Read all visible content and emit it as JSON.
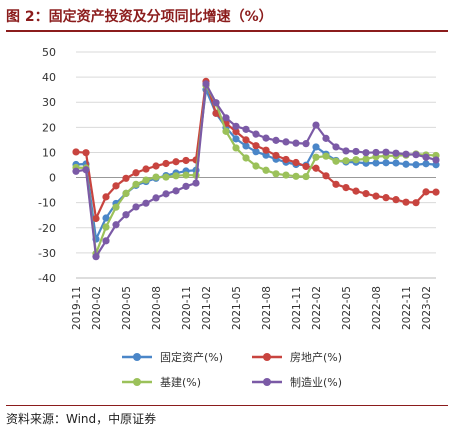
{
  "title": "图 2：固定资产投资及分项同比增速（%）",
  "source": "资料来源：Wind，中原证券",
  "chart_data": {
    "type": "line",
    "ylim": [
      -40,
      50
    ],
    "yticks": [
      -40,
      -30,
      -20,
      -10,
      0,
      10,
      20,
      30,
      40,
      50
    ],
    "grid": true,
    "legend_position": "bottom",
    "x": [
      "2019-11",
      "2019-12",
      "2020-02",
      "2020-03",
      "2020-04",
      "2020-05",
      "2020-06",
      "2020-07",
      "2020-08",
      "2020-09",
      "2020-10",
      "2020-11",
      "2020-12",
      "2021-02",
      "2021-03",
      "2021-04",
      "2021-05",
      "2021-06",
      "2021-07",
      "2021-08",
      "2021-09",
      "2021-10",
      "2021-11",
      "2021-12",
      "2022-02",
      "2022-03",
      "2022-04",
      "2022-05",
      "2022-06",
      "2022-07",
      "2022-08",
      "2022-09",
      "2022-10",
      "2022-11",
      "2022-12",
      "2023-02",
      "2023-03"
    ],
    "xtick_labels": [
      "2019-11",
      "2020-02",
      "2020-05",
      "2020-08",
      "2020-11",
      "2021-02",
      "2021-05",
      "2021-08",
      "2021-11",
      "2022-02",
      "2022-05",
      "2022-08",
      "2022-11",
      "2023-02"
    ],
    "series": [
      {
        "name": "固定资产(%)",
        "color": "#4a86c8",
        "values": [
          5.2,
          5.4,
          -24.5,
          -16.1,
          -10.3,
          -6.3,
          -3.1,
          -1.6,
          -0.3,
          0.8,
          1.8,
          2.6,
          2.9,
          35.0,
          25.6,
          19.9,
          15.4,
          12.6,
          10.3,
          8.9,
          7.3,
          6.1,
          5.2,
          4.9,
          12.2,
          9.3,
          6.8,
          6.2,
          6.1,
          5.7,
          5.8,
          5.9,
          5.8,
          5.3,
          5.1,
          5.5,
          5.1
        ]
      },
      {
        "name": "房地产(%)",
        "color": "#c8443f",
        "values": [
          10.2,
          9.9,
          -16.3,
          -7.7,
          -3.3,
          -0.3,
          1.9,
          3.4,
          4.6,
          5.6,
          6.3,
          6.8,
          7.0,
          38.3,
          25.6,
          21.6,
          18.3,
          15.0,
          12.7,
          10.9,
          8.8,
          7.2,
          6.0,
          4.4,
          3.7,
          0.7,
          -2.7,
          -4.0,
          -5.4,
          -6.4,
          -7.4,
          -8.0,
          -8.8,
          -9.8,
          -10.0,
          -5.7,
          -5.8
        ]
      },
      {
        "name": "基建(%)",
        "color": "#9bc15a",
        "values": [
          4.0,
          3.8,
          -30.3,
          -19.7,
          -11.8,
          -6.3,
          -2.7,
          -1.0,
          0.2,
          0.2,
          0.7,
          1.0,
          0.9,
          36.6,
          29.7,
          18.4,
          11.8,
          7.8,
          4.6,
          2.9,
          1.5,
          1.0,
          0.5,
          0.4,
          8.1,
          8.5,
          6.5,
          6.7,
          7.1,
          7.4,
          8.3,
          8.6,
          8.7,
          8.9,
          9.4,
          9.0,
          8.8
        ]
      },
      {
        "name": "制造业(%)",
        "color": "#7b5aa6",
        "values": [
          2.5,
          3.1,
          -31.5,
          -25.2,
          -18.8,
          -14.8,
          -11.7,
          -10.2,
          -8.1,
          -6.5,
          -5.3,
          -3.5,
          -2.2,
          37.3,
          29.8,
          23.8,
          20.4,
          19.2,
          17.3,
          15.7,
          14.8,
          14.2,
          13.7,
          13.5,
          20.9,
          15.6,
          12.2,
          10.6,
          10.4,
          9.9,
          10.0,
          10.1,
          9.7,
          9.3,
          9.1,
          8.1,
          7.0
        ]
      }
    ]
  }
}
